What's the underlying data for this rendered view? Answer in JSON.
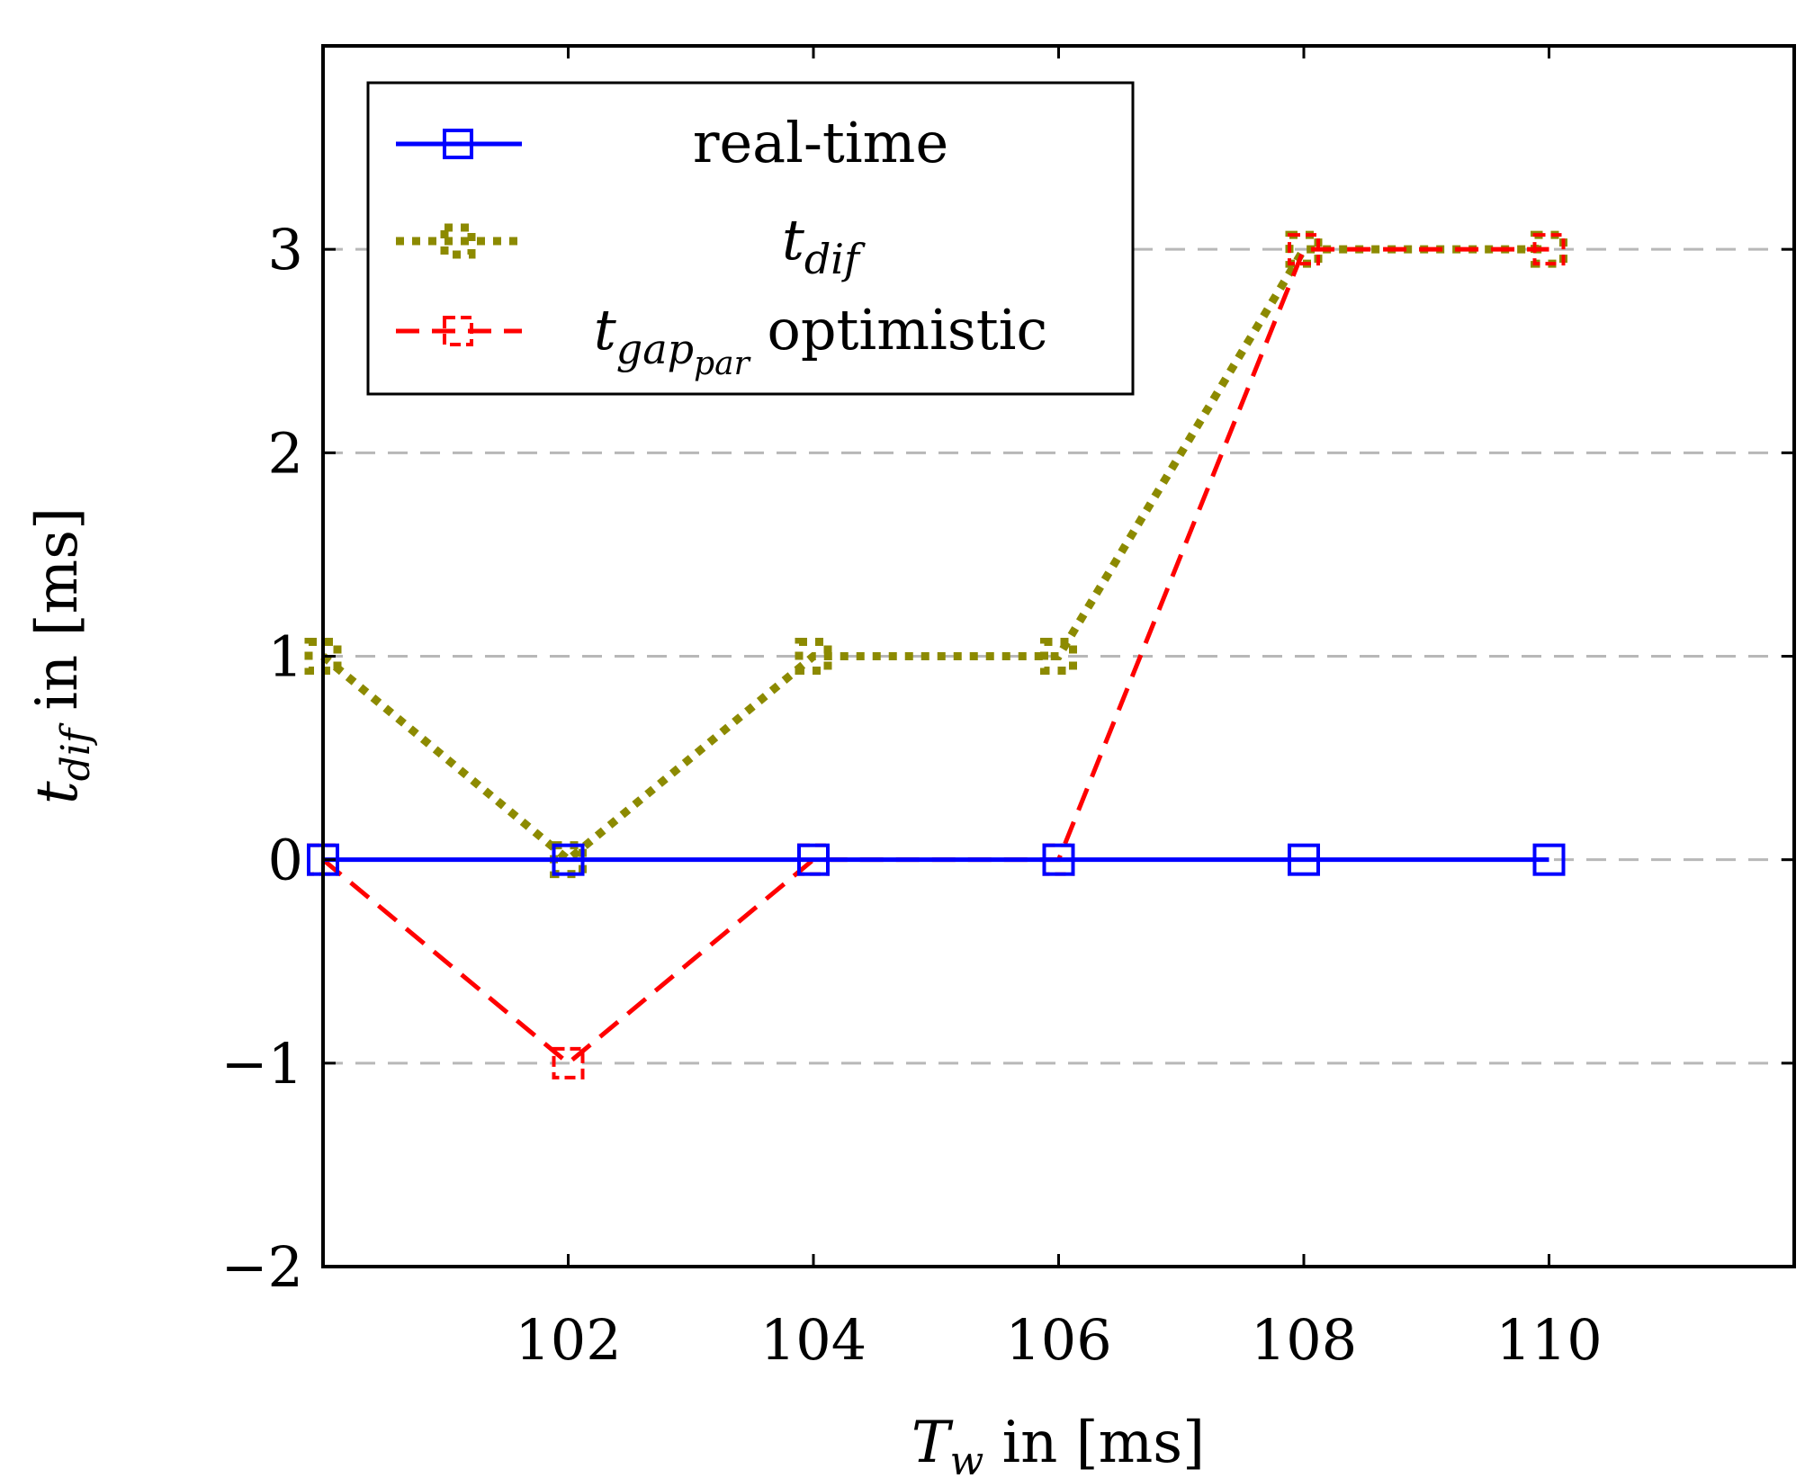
{
  "chart_data": {
    "type": "line",
    "xlabel": {
      "var": "T",
      "sub": "w",
      "rest": " in [ms]"
    },
    "ylabel": {
      "var": "t",
      "sub": "dif",
      "rest": " in [ms]"
    },
    "xlim": [
      100,
      112
    ],
    "ylim": [
      -2,
      4
    ],
    "xticks": [
      102,
      104,
      106,
      108,
      110
    ],
    "xtick_labels": [
      "102",
      "104",
      "106",
      "108",
      "110"
    ],
    "yticks": [
      -2,
      -1,
      0,
      1,
      2,
      3
    ],
    "ytick_labels": [
      "−2",
      "−1",
      "0",
      "1",
      "2",
      "3"
    ],
    "grid": "horizontal dashed",
    "legend_position": "top-left",
    "x": [
      100,
      102,
      104,
      106,
      108,
      110
    ],
    "series": [
      {
        "name": "real-time",
        "color": "#0000ff",
        "style": "solid",
        "marker": "square",
        "values": [
          0,
          0,
          0,
          0,
          0,
          0
        ]
      },
      {
        "name": "t_dif",
        "color": "#8c8a00",
        "style": "dotted",
        "marker": "square",
        "values": [
          1,
          0,
          1,
          1,
          3,
          3
        ]
      },
      {
        "name": "t_gap_par optimistic",
        "color": "#ff0000",
        "style": "dashed",
        "marker": "square",
        "values": [
          0,
          -1,
          0,
          0,
          3,
          3
        ]
      }
    ],
    "legend": [
      {
        "parts": [
          {
            "t": "real-time",
            "i": false
          }
        ]
      },
      {
        "parts": [
          {
            "t": "t",
            "i": true
          },
          {
            "t": "dif",
            "i": true,
            "sub": 1
          }
        ]
      },
      {
        "parts": [
          {
            "t": "t",
            "i": true
          },
          {
            "t": "gap",
            "i": true,
            "sub": 1
          },
          {
            "t": "par",
            "i": true,
            "sub": 2
          },
          {
            "t": " optimistic",
            "i": false
          }
        ]
      }
    ]
  }
}
